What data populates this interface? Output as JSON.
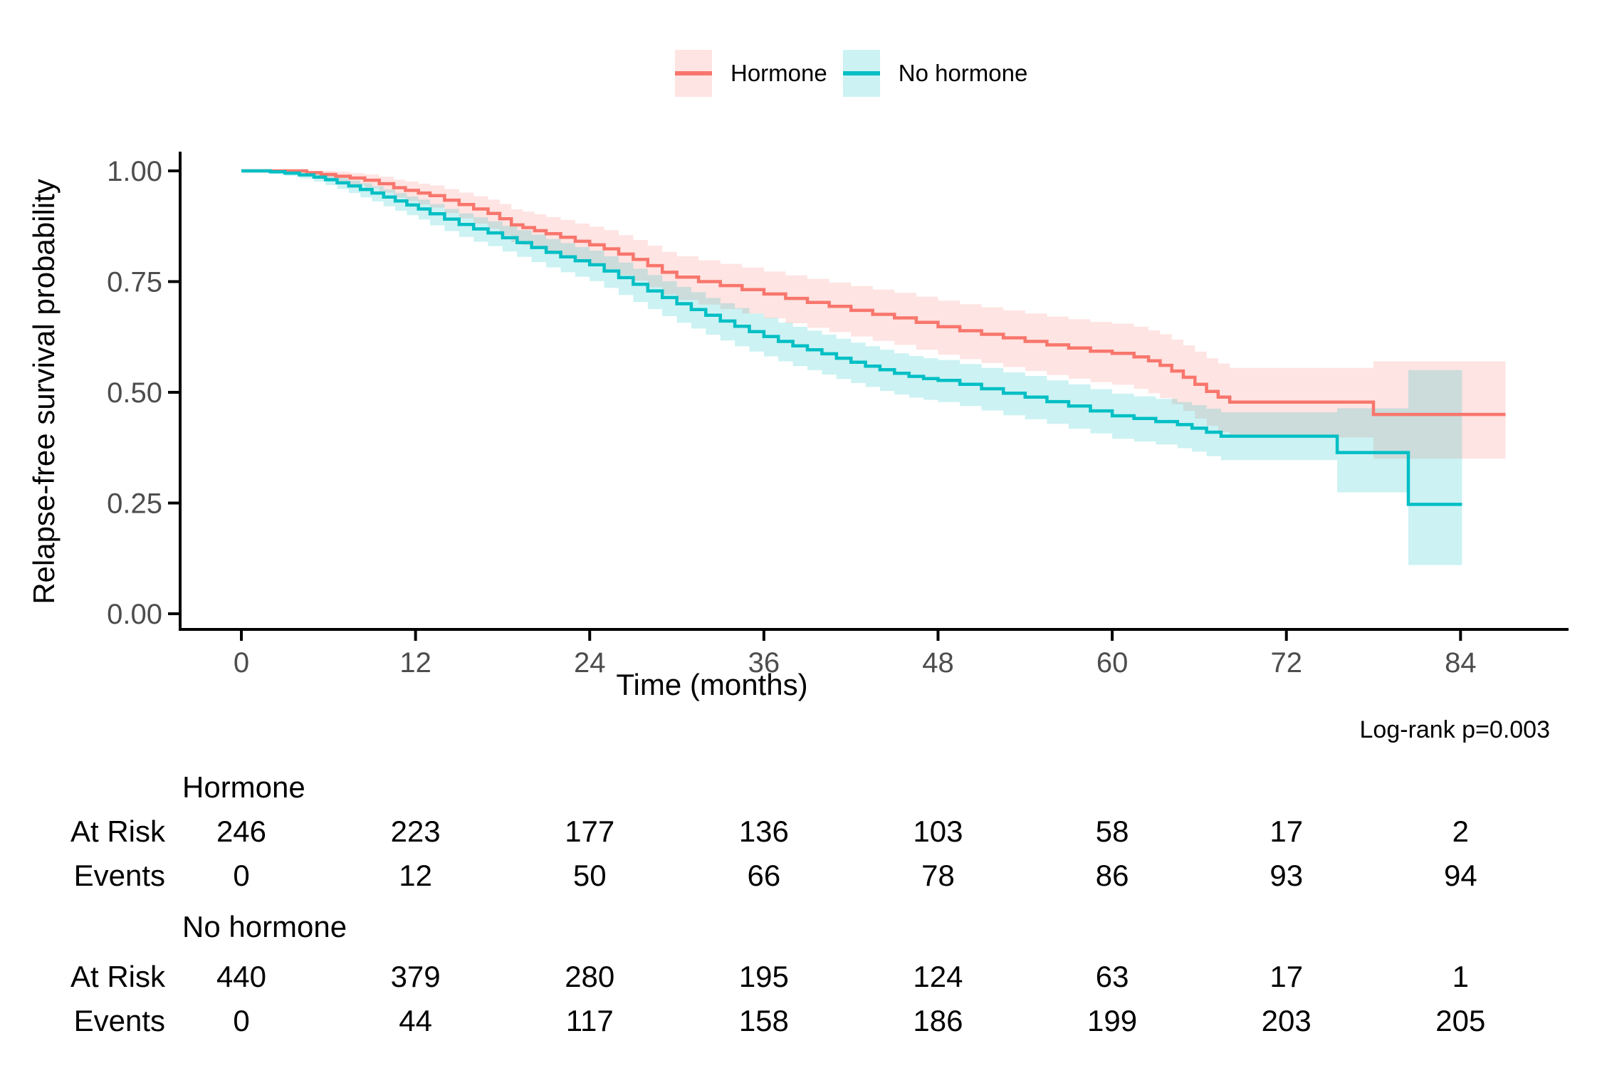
{
  "annotation": {
    "log_rank_label": "Log-rank p=0.003"
  },
  "colors": {
    "hormone_line": "#F8766D",
    "hormone_band": "rgba(248,118,109,0.20)",
    "no_hormone_line": "#00BFC4",
    "no_hormone_band": "rgba(0,191,196,0.20)",
    "tick_label": "#4D4D4D",
    "axis_line": "#000000"
  },
  "chart_data": {
    "type": "line",
    "subtype": "kaplan-meier-step-with-ci",
    "title": "",
    "xlabel": "Time (months)",
    "ylabel": "Relapse-free survival probability",
    "xlim": [
      0,
      88
    ],
    "ylim": [
      0,
      1
    ],
    "grid": false,
    "legend_position": "top-center",
    "xticks": [
      0,
      12,
      24,
      36,
      48,
      60,
      72,
      84
    ],
    "yticks": [
      {
        "v": 0.0,
        "label": "0.00"
      },
      {
        "v": 0.25,
        "label": "0.25"
      },
      {
        "v": 0.5,
        "label": "0.50"
      },
      {
        "v": 0.75,
        "label": "0.75"
      },
      {
        "v": 1.0,
        "label": "1.00"
      }
    ],
    "annotation": "Log-rank p=0.003",
    "series": [
      {
        "name": "Hormone",
        "color": "#F8766D",
        "fill": "rgba(248,118,109,0.20)",
        "points_format": [
          "time_months",
          "survival",
          "ci_lower",
          "ci_upper"
        ],
        "points": [
          [
            0,
            1,
            1,
            1
          ],
          [
            4.5,
            0.996,
            0.988,
            1
          ],
          [
            5.5,
            0.992,
            0.981,
            1
          ],
          [
            6.5,
            0.988,
            0.975,
            0.998
          ],
          [
            7.5,
            0.984,
            0.969,
            0.995
          ],
          [
            8.5,
            0.979,
            0.962,
            0.992
          ],
          [
            9.5,
            0.971,
            0.951,
            0.987
          ],
          [
            10.5,
            0.962,
            0.94,
            0.98
          ],
          [
            11.3,
            0.956,
            0.932,
            0.976
          ],
          [
            12.2,
            0.95,
            0.924,
            0.971
          ],
          [
            13,
            0.944,
            0.917,
            0.967
          ],
          [
            14,
            0.934,
            0.905,
            0.959
          ],
          [
            15,
            0.924,
            0.893,
            0.951
          ],
          [
            16,
            0.914,
            0.881,
            0.943
          ],
          [
            17,
            0.904,
            0.869,
            0.935
          ],
          [
            17.8,
            0.892,
            0.855,
            0.925
          ],
          [
            18.6,
            0.878,
            0.839,
            0.913
          ],
          [
            19.4,
            0.872,
            0.832,
            0.908
          ],
          [
            20.2,
            0.865,
            0.824,
            0.902
          ],
          [
            21,
            0.858,
            0.816,
            0.896
          ],
          [
            22,
            0.85,
            0.807,
            0.889
          ],
          [
            23,
            0.841,
            0.797,
            0.881
          ],
          [
            24,
            0.833,
            0.788,
            0.874
          ],
          [
            25,
            0.824,
            0.778,
            0.866
          ],
          [
            26,
            0.812,
            0.765,
            0.855
          ],
          [
            27,
            0.8,
            0.752,
            0.844
          ],
          [
            28,
            0.786,
            0.737,
            0.831
          ],
          [
            29,
            0.771,
            0.721,
            0.817
          ],
          [
            30,
            0.76,
            0.709,
            0.807
          ],
          [
            31.5,
            0.75,
            0.698,
            0.798
          ],
          [
            33,
            0.741,
            0.688,
            0.79
          ],
          [
            34.5,
            0.732,
            0.678,
            0.782
          ],
          [
            36,
            0.722,
            0.667,
            0.773
          ],
          [
            37.5,
            0.712,
            0.656,
            0.764
          ],
          [
            39,
            0.703,
            0.646,
            0.756
          ],
          [
            40.5,
            0.694,
            0.636,
            0.748
          ],
          [
            42,
            0.685,
            0.626,
            0.74
          ],
          [
            43.5,
            0.676,
            0.616,
            0.732
          ],
          [
            45,
            0.668,
            0.607,
            0.725
          ],
          [
            46.5,
            0.658,
            0.596,
            0.716
          ],
          [
            48,
            0.648,
            0.585,
            0.707
          ],
          [
            49.5,
            0.639,
            0.575,
            0.699
          ],
          [
            51,
            0.631,
            0.566,
            0.692
          ],
          [
            52.5,
            0.623,
            0.557,
            0.685
          ],
          [
            54,
            0.615,
            0.548,
            0.678
          ],
          [
            55.5,
            0.607,
            0.539,
            0.671
          ],
          [
            57,
            0.6,
            0.531,
            0.665
          ],
          [
            58.5,
            0.593,
            0.523,
            0.659
          ],
          [
            60,
            0.588,
            0.517,
            0.655
          ],
          [
            61.5,
            0.58,
            0.508,
            0.648
          ],
          [
            62.5,
            0.571,
            0.498,
            0.64
          ],
          [
            63.3,
            0.561,
            0.487,
            0.631
          ],
          [
            64.1,
            0.548,
            0.473,
            0.619
          ],
          [
            64.9,
            0.534,
            0.458,
            0.606
          ],
          [
            65.7,
            0.518,
            0.441,
            0.592
          ],
          [
            66.5,
            0.502,
            0.424,
            0.577
          ],
          [
            67.3,
            0.489,
            0.41,
            0.565
          ],
          [
            68.1,
            0.478,
            0.398,
            0.555
          ],
          [
            78,
            0.45,
            0.35,
            0.57
          ],
          [
            87.1,
            0.45,
            0.35,
            0.57
          ]
        ]
      },
      {
        "name": "No hormone",
        "color": "#00BFC4",
        "fill": "rgba(0,191,196,0.20)",
        "points_format": [
          "time_months",
          "survival",
          "ci_lower",
          "ci_upper"
        ],
        "points": [
          [
            0,
            1,
            1,
            1
          ],
          [
            2,
            0.998,
            0.993,
            1
          ],
          [
            3,
            0.995,
            0.989,
            1
          ],
          [
            4,
            0.991,
            0.983,
            0.997
          ],
          [
            5,
            0.986,
            0.976,
            0.994
          ],
          [
            5.8,
            0.98,
            0.968,
            0.989
          ],
          [
            6.6,
            0.973,
            0.959,
            0.984
          ],
          [
            7.4,
            0.966,
            0.95,
            0.978
          ],
          [
            8.2,
            0.958,
            0.94,
            0.972
          ],
          [
            9,
            0.95,
            0.931,
            0.965
          ],
          [
            9.8,
            0.941,
            0.92,
            0.958
          ],
          [
            10.6,
            0.932,
            0.91,
            0.95
          ],
          [
            11.4,
            0.923,
            0.9,
            0.942
          ],
          [
            12.2,
            0.914,
            0.89,
            0.935
          ],
          [
            13,
            0.903,
            0.877,
            0.925
          ],
          [
            14,
            0.891,
            0.864,
            0.914
          ],
          [
            15,
            0.879,
            0.851,
            0.904
          ],
          [
            16,
            0.869,
            0.84,
            0.895
          ],
          [
            17,
            0.86,
            0.83,
            0.886
          ],
          [
            18,
            0.849,
            0.818,
            0.876
          ],
          [
            19,
            0.838,
            0.806,
            0.866
          ],
          [
            20,
            0.827,
            0.794,
            0.856
          ],
          [
            21,
            0.816,
            0.782,
            0.846
          ],
          [
            22,
            0.806,
            0.771,
            0.837
          ],
          [
            23,
            0.797,
            0.761,
            0.828
          ],
          [
            24,
            0.788,
            0.751,
            0.82
          ],
          [
            25,
            0.774,
            0.736,
            0.807
          ],
          [
            26,
            0.759,
            0.72,
            0.793
          ],
          [
            27,
            0.744,
            0.704,
            0.779
          ],
          [
            28,
            0.729,
            0.688,
            0.765
          ],
          [
            29,
            0.714,
            0.672,
            0.751
          ],
          [
            30,
            0.7,
            0.657,
            0.738
          ],
          [
            31,
            0.687,
            0.644,
            0.726
          ],
          [
            32,
            0.674,
            0.63,
            0.713
          ],
          [
            33,
            0.661,
            0.617,
            0.701
          ],
          [
            34,
            0.649,
            0.604,
            0.69
          ],
          [
            35,
            0.637,
            0.592,
            0.678
          ],
          [
            36,
            0.626,
            0.581,
            0.668
          ],
          [
            37,
            0.615,
            0.57,
            0.657
          ],
          [
            38,
            0.605,
            0.559,
            0.648
          ],
          [
            39,
            0.596,
            0.55,
            0.639
          ],
          [
            40,
            0.587,
            0.54,
            0.63
          ],
          [
            41,
            0.577,
            0.53,
            0.621
          ],
          [
            42,
            0.568,
            0.521,
            0.612
          ],
          [
            43,
            0.559,
            0.512,
            0.604
          ],
          [
            44,
            0.551,
            0.503,
            0.596
          ],
          [
            45,
            0.543,
            0.495,
            0.588
          ],
          [
            46,
            0.536,
            0.488,
            0.582
          ],
          [
            47,
            0.531,
            0.483,
            0.577
          ],
          [
            48,
            0.527,
            0.478,
            0.573
          ],
          [
            49.5,
            0.518,
            0.469,
            0.564
          ],
          [
            51,
            0.508,
            0.459,
            0.555
          ],
          [
            52.5,
            0.498,
            0.448,
            0.545
          ],
          [
            54,
            0.489,
            0.439,
            0.537
          ],
          [
            55.5,
            0.479,
            0.429,
            0.527
          ],
          [
            57,
            0.469,
            0.418,
            0.518
          ],
          [
            58.5,
            0.458,
            0.407,
            0.507
          ],
          [
            60,
            0.447,
            0.395,
            0.497
          ],
          [
            61.5,
            0.441,
            0.389,
            0.491
          ],
          [
            63,
            0.434,
            0.382,
            0.485
          ],
          [
            64.5,
            0.427,
            0.374,
            0.478
          ],
          [
            65.5,
            0.419,
            0.366,
            0.471
          ],
          [
            66.5,
            0.41,
            0.356,
            0.463
          ],
          [
            67.5,
            0.401,
            0.347,
            0.455
          ],
          [
            75.5,
            0.364,
            0.274,
            0.464
          ],
          [
            80.4,
            0.247,
            0.11,
            0.55
          ],
          [
            84.1,
            0.247,
            0.11,
            0.55
          ]
        ]
      }
    ]
  },
  "risk_table": {
    "times": [
      0,
      12,
      24,
      36,
      48,
      60,
      72,
      84
    ],
    "row_labels": [
      "At Risk",
      "Events"
    ],
    "groups": [
      {
        "name": "Hormone",
        "at_risk": [
          246,
          223,
          177,
          136,
          103,
          58,
          17,
          2
        ],
        "events": [
          0,
          12,
          50,
          66,
          78,
          86,
          93,
          94
        ]
      },
      {
        "name": "No hormone",
        "at_risk": [
          440,
          379,
          280,
          195,
          124,
          63,
          17,
          1
        ],
        "events": [
          0,
          44,
          117,
          158,
          186,
          199,
          203,
          205
        ]
      }
    ]
  }
}
